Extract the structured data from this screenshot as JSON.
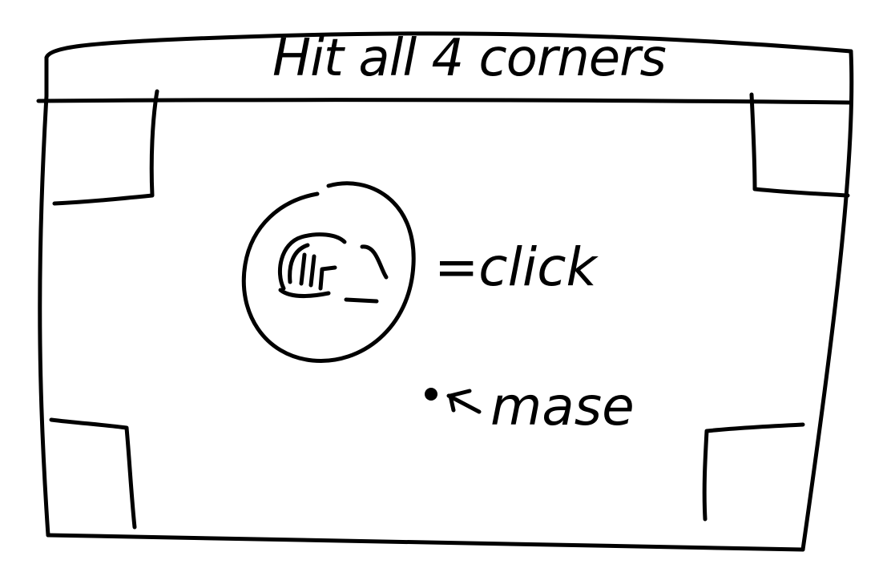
{
  "title": "Hit all 4 corners",
  "legend": {
    "click_label": "=click",
    "mouse_label": "mase"
  },
  "icons": {
    "click": "hand-click-icon",
    "mouse": "mouse-cursor-icon"
  },
  "ink_color": "#000000",
  "background_color": "#ffffff"
}
